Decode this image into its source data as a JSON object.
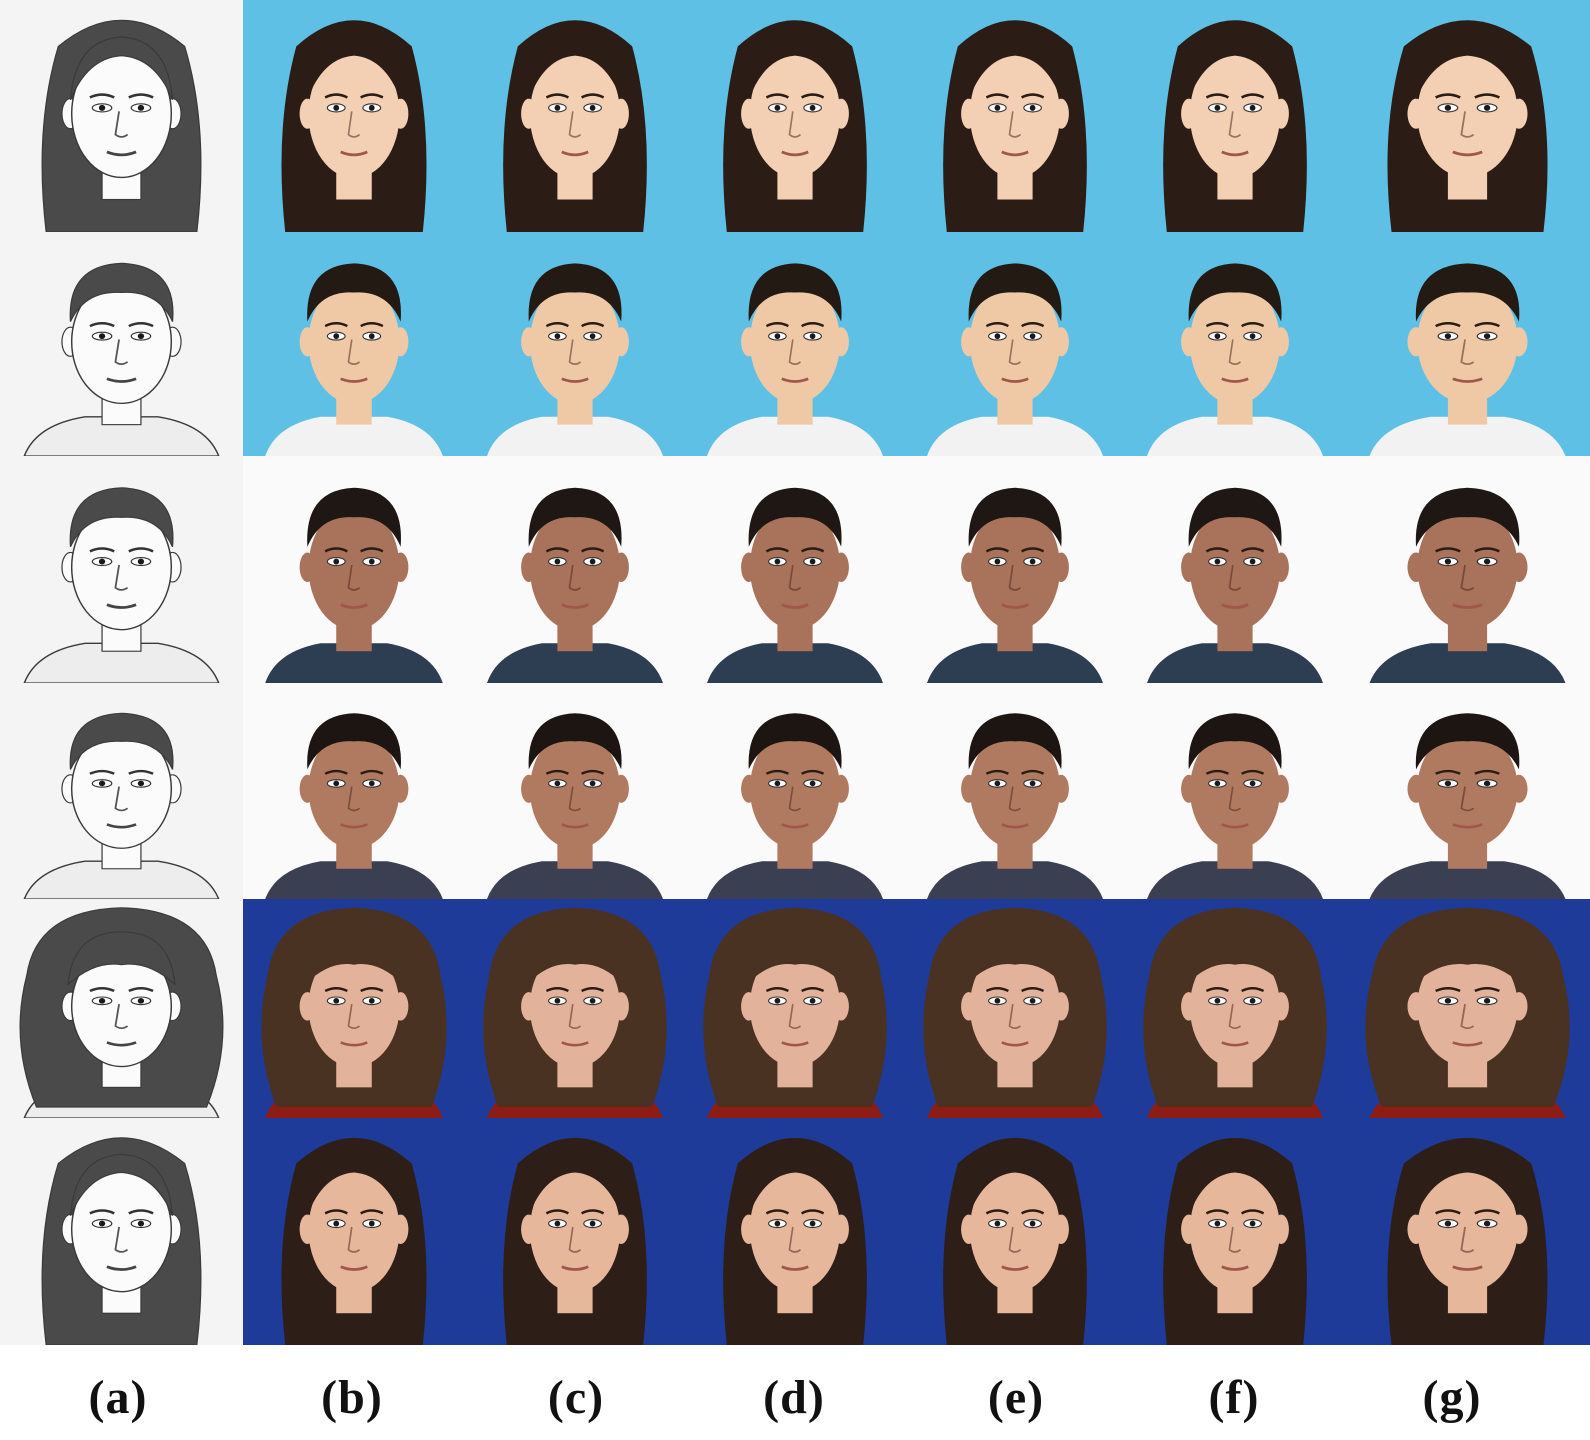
{
  "figure": {
    "column_labels": [
      "(a)",
      "(b)",
      "(c)",
      "(d)",
      "(e)",
      "(f)",
      "(g)"
    ],
    "colors": {
      "sketch_bg": "#f4f4f4",
      "sketch_line": "#3a3a3a",
      "light_blue_bg": "#5ec0e4",
      "white_bg": "#fafafa",
      "dark_blue_bg": "#1e3b9a"
    },
    "rows": [
      {
        "name": "row-1",
        "background": "light_blue",
        "hair": "long-dark",
        "skin": "#f3cfb3",
        "hair_color": "#2b1d16",
        "shirt": "none"
      },
      {
        "name": "row-2",
        "background": "light_blue",
        "hair": "short-dark",
        "skin": "#efc9a6",
        "hair_color": "#241a14",
        "shirt": "#f2f2f2"
      },
      {
        "name": "row-3",
        "background": "white",
        "hair": "short-dark",
        "skin": "#a9725a",
        "hair_color": "#1f1713",
        "shirt": "#2d3d52"
      },
      {
        "name": "row-4",
        "background": "white",
        "hair": "short-dark",
        "skin": "#b07a61",
        "hair_color": "#1d1512",
        "shirt": "#3a3f52"
      },
      {
        "name": "row-5",
        "background": "dark_blue",
        "hair": "curly-voluminous",
        "skin": "#e2b39a",
        "hair_color": "#4a3223",
        "shirt": "#8c1c14"
      },
      {
        "name": "row-6",
        "background": "dark_blue",
        "hair": "long-parted",
        "skin": "#e7b79c",
        "hair_color": "#2d1f18",
        "shirt": "none"
      }
    ]
  }
}
